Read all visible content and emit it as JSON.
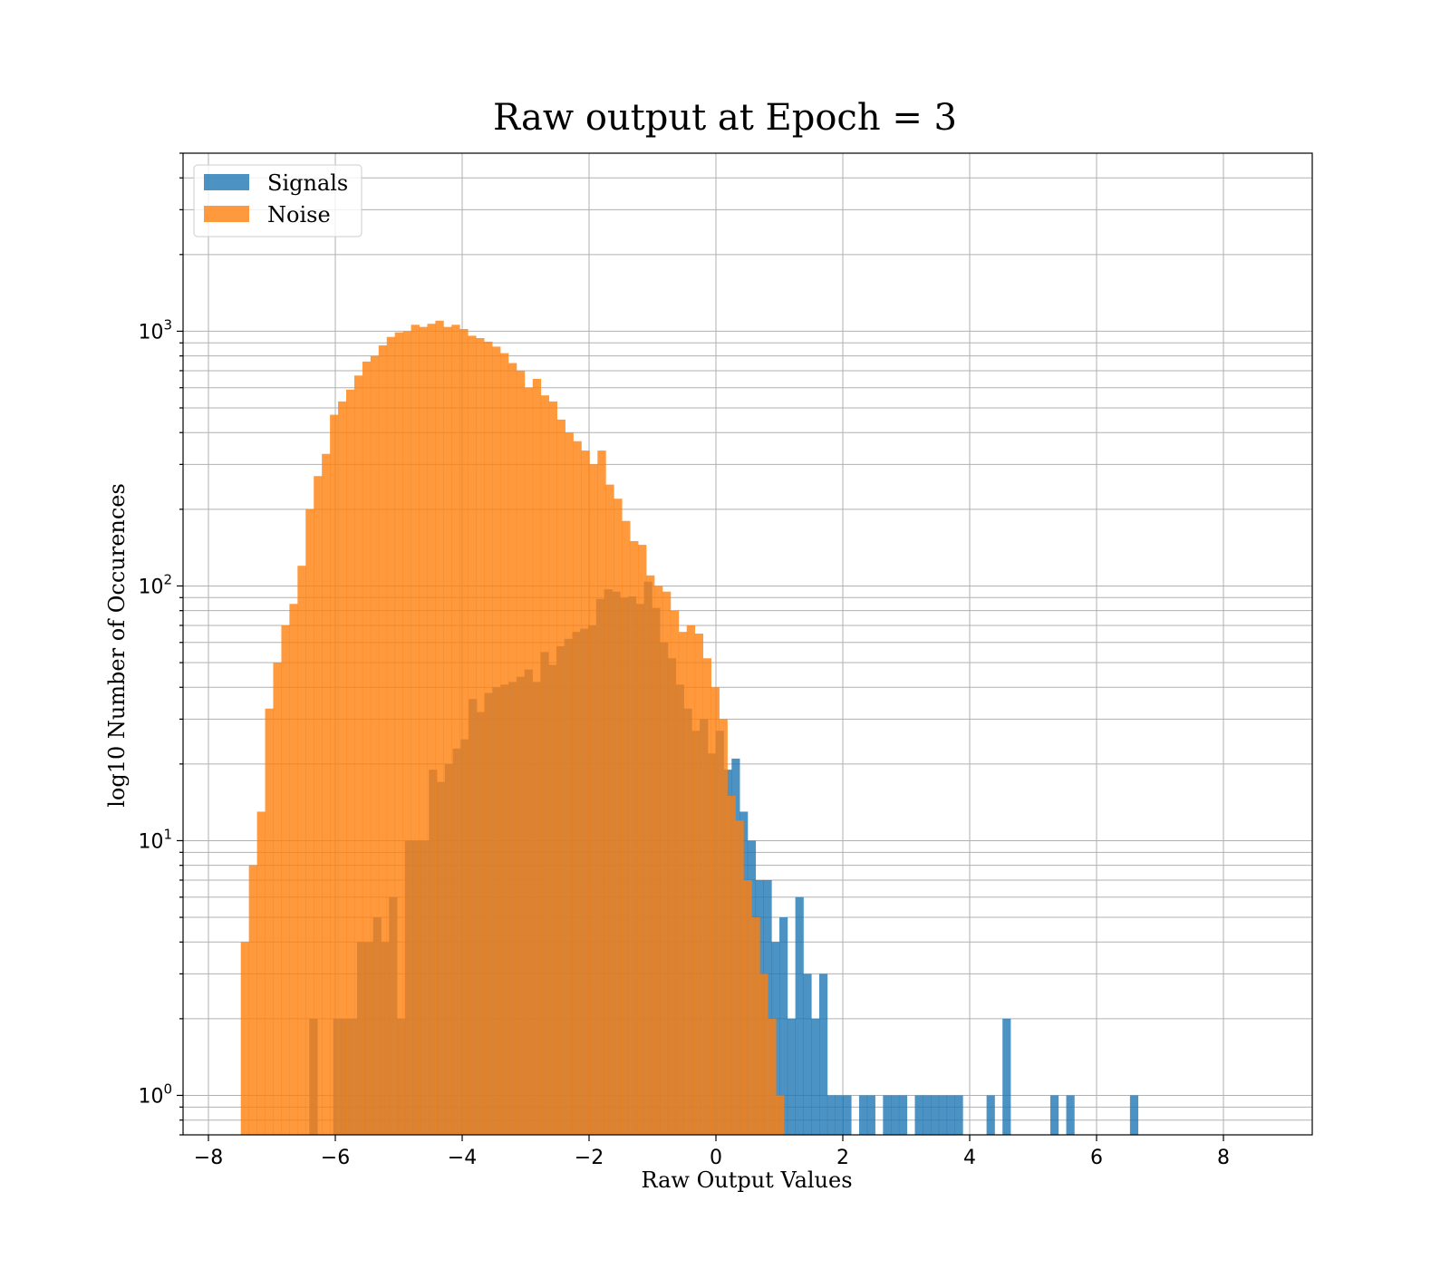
{
  "chart_data": {
    "type": "histogram",
    "title": "Raw output at Epoch = 3",
    "xlabel": "Raw Output Values",
    "ylabel": "log10 Number of Occurences",
    "xlim": [
      -8.4,
      9.4
    ],
    "ylim": [
      0.7,
      5000
    ],
    "yscale": "log",
    "grid": true,
    "legend_position": "upper-left",
    "x_ticks": [
      -8,
      -6,
      -4,
      -2,
      0,
      2,
      4,
      6,
      8
    ],
    "x_tick_labels": [
      "−8",
      "−6",
      "−4",
      "−2",
      "0",
      "2",
      "4",
      "6",
      "8"
    ],
    "y_ticks": [
      1,
      10,
      100,
      1000
    ],
    "y_tick_labels": [
      {
        "base": "10",
        "exp": "0"
      },
      {
        "base": "10",
        "exp": "1"
      },
      {
        "base": "10",
        "exp": "2"
      },
      {
        "base": "10",
        "exp": "3"
      }
    ],
    "series": [
      {
        "name": "Signals",
        "color": "#1f77b4",
        "opacity": 0.8,
        "bin_start": -6.41,
        "bin_width": 0.1256,
        "counts": [
          2,
          0,
          0,
          2,
          2,
          2,
          4,
          4,
          5,
          4,
          6,
          2,
          10,
          10,
          10,
          19,
          17,
          20,
          23,
          25,
          36,
          32,
          38,
          40,
          41,
          42,
          44,
          47,
          42,
          55,
          49,
          58,
          62,
          66,
          68,
          70,
          89,
          97,
          95,
          90,
          91,
          85,
          104,
          82,
          60,
          52,
          41,
          33,
          27,
          30,
          22,
          27,
          19,
          21,
          13,
          10,
          7,
          7,
          4,
          5,
          2,
          6,
          3,
          2,
          3,
          1,
          1,
          1,
          0,
          1,
          1,
          0,
          1,
          1,
          1,
          0,
          1,
          1,
          1,
          1,
          1,
          1,
          0,
          0,
          0,
          1,
          0,
          2,
          0,
          0,
          0,
          0,
          0,
          1,
          0,
          1,
          0,
          0,
          0,
          0,
          0,
          0,
          0,
          1,
          0,
          0,
          0,
          0,
          0,
          0,
          0,
          0,
          0,
          0,
          0,
          0,
          0,
          0,
          0,
          0
        ]
      },
      {
        "name": "Noise",
        "color": "#ff7f0e",
        "opacity": 0.8,
        "bin_start": -7.49,
        "bin_width": 0.1278,
        "counts": [
          4,
          8,
          13,
          33,
          50,
          70,
          85,
          120,
          200,
          270,
          330,
          470,
          530,
          590,
          670,
          760,
          800,
          880,
          950,
          990,
          1000,
          1060,
          1040,
          1070,
          1100,
          1040,
          1060,
          1020,
          960,
          940,
          910,
          870,
          820,
          750,
          700,
          600,
          650,
          560,
          530,
          450,
          400,
          370,
          340,
          300,
          340,
          250,
          220,
          180,
          150,
          145,
          110,
          100,
          95,
          80,
          66,
          70,
          65,
          52,
          40,
          30,
          15,
          12,
          7,
          5,
          3,
          2,
          1,
          0,
          0,
          0,
          0,
          0,
          0,
          0,
          0,
          0,
          0,
          0,
          0,
          0,
          0,
          0,
          0,
          0,
          0,
          0,
          0,
          0,
          0,
          0,
          0,
          0,
          0,
          0,
          0,
          0,
          0,
          0,
          0,
          0,
          0,
          0,
          0,
          0,
          0,
          0,
          0,
          0,
          0,
          0,
          0,
          0,
          0,
          0,
          0,
          0,
          0,
          0,
          0,
          0,
          0,
          0
        ]
      }
    ]
  }
}
